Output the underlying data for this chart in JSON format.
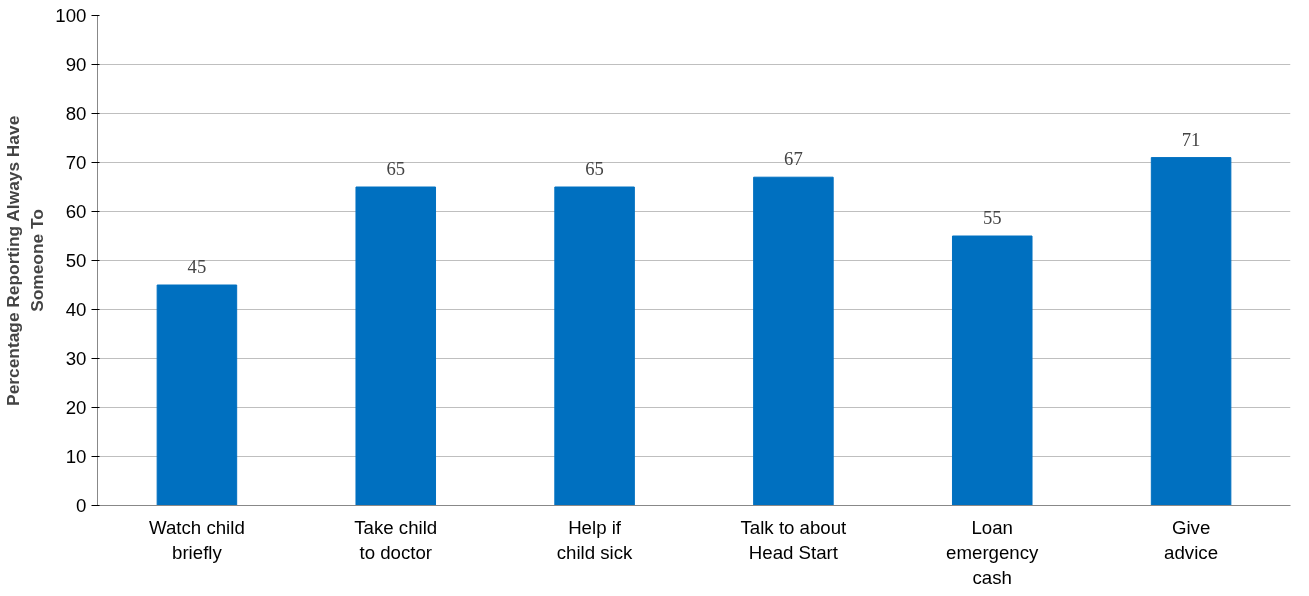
{
  "chart_data": {
    "type": "bar",
    "ylabel": "Percentage Reporting Always Have\nSomeone To",
    "categories": [
      "Watch child\nbriefly",
      "Take child\nto doctor",
      "Help if\nchild sick",
      "Talk to about\nHead Start",
      "Loan\nemergency\ncash",
      "Give\nadvice"
    ],
    "values": [
      45,
      65,
      65,
      67,
      55,
      71
    ],
    "color": "#0070c0",
    "ylim": [
      0,
      100
    ],
    "yticks": [
      0,
      10,
      20,
      30,
      40,
      50,
      60,
      70,
      80,
      90,
      100
    ],
    "grid": "y",
    "data_labels": true
  }
}
